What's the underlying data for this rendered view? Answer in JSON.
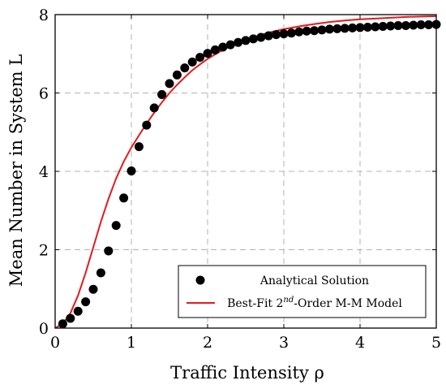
{
  "chart_data": {
    "type": "scatter",
    "xlabel": "Traffic Intensity ρ",
    "ylabel": "Mean Number in System L",
    "xlim": [
      0,
      5
    ],
    "ylim": [
      0,
      8
    ],
    "xticks": [
      0,
      1,
      2,
      3,
      4,
      5
    ],
    "yticks": [
      0,
      2,
      4,
      6,
      8
    ],
    "grid": true,
    "legend_position": "bottom-right",
    "series": [
      {
        "name": "Analytical Solution",
        "kind": "scatter",
        "color": "#000000",
        "x": [
          0.1,
          0.2,
          0.3,
          0.4,
          0.5,
          0.6,
          0.7,
          0.8,
          0.9,
          1.0,
          1.1,
          1.2,
          1.3,
          1.4,
          1.5,
          1.6,
          1.7,
          1.8,
          1.9,
          2.0,
          2.1,
          2.2,
          2.3,
          2.4,
          2.5,
          2.6,
          2.7,
          2.8,
          2.9,
          3.0,
          3.1,
          3.2,
          3.3,
          3.4,
          3.5,
          3.6,
          3.7,
          3.8,
          3.9,
          4.0,
          4.1,
          4.2,
          4.3,
          4.4,
          4.5,
          4.6,
          4.7,
          4.8,
          4.9,
          5.0
        ],
        "y": [
          0.11,
          0.25,
          0.43,
          0.67,
          0.99,
          1.41,
          1.97,
          2.62,
          3.32,
          4.01,
          4.63,
          5.18,
          5.62,
          5.96,
          6.24,
          6.46,
          6.64,
          6.79,
          6.91,
          7.01,
          7.1,
          7.17,
          7.23,
          7.29,
          7.34,
          7.38,
          7.42,
          7.46,
          7.49,
          7.51,
          7.53,
          7.56,
          7.58,
          7.59,
          7.61,
          7.63,
          7.64,
          7.65,
          7.66,
          7.67,
          7.68,
          7.69,
          7.7,
          7.71,
          7.72,
          7.72,
          7.73,
          7.74,
          7.74,
          7.75
        ]
      },
      {
        "name": "Best-Fit 2nd-Order M-M Model",
        "name_parts": [
          "Best-Fit 2",
          "nd",
          "-Order M-M Model"
        ],
        "kind": "line",
        "color": "#e41a1c",
        "x": [
          0,
          0.1,
          0.2,
          0.3,
          0.4,
          0.5,
          0.6,
          0.7,
          0.8,
          0.9,
          1.0,
          1.1,
          1.2,
          1.3,
          1.4,
          1.5,
          1.6,
          1.7,
          1.8,
          1.9,
          2.0,
          2.2,
          2.4,
          2.6,
          2.8,
          3.0,
          3.2,
          3.4,
          3.6,
          3.8,
          4.0,
          4.2,
          4.4,
          4.6,
          4.8,
          5.0
        ],
        "y": [
          0,
          0.11,
          0.38,
          0.83,
          1.41,
          2.06,
          2.71,
          3.3,
          3.82,
          4.25,
          4.61,
          4.92,
          5.22,
          5.5,
          5.76,
          6.0,
          6.21,
          6.4,
          6.58,
          6.73,
          6.87,
          7.1,
          7.28,
          7.42,
          7.54,
          7.63,
          7.7,
          7.76,
          7.81,
          7.85,
          7.88,
          7.9,
          7.92,
          7.94,
          7.95,
          7.96
        ]
      }
    ]
  }
}
